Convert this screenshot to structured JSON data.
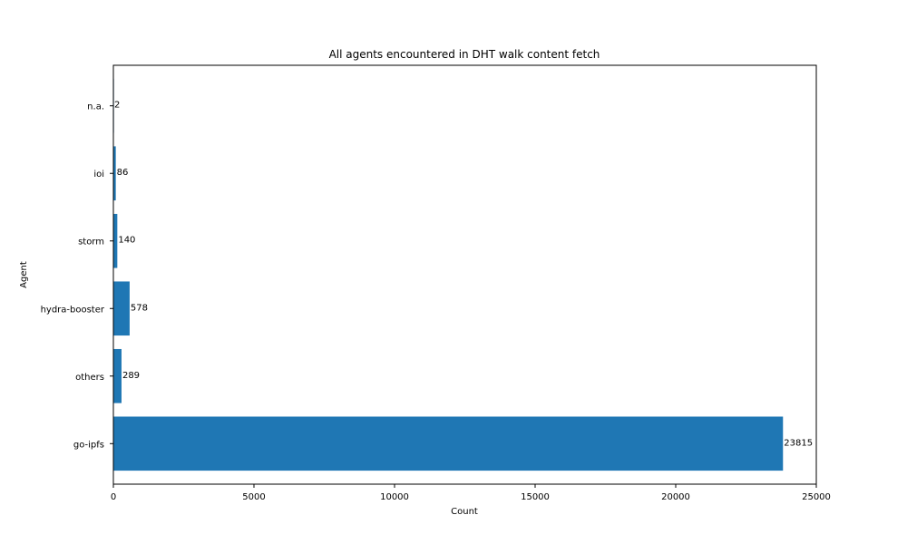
{
  "chart_data": {
    "type": "bar",
    "orientation": "horizontal",
    "title": "All agents encountered in DHT walk content fetch",
    "xlabel": "Count",
    "ylabel": "Agent",
    "categories": [
      "go-ipfs",
      "others",
      "hydra-booster",
      "storm",
      "ioi",
      "n.a."
    ],
    "values": [
      23815,
      289,
      578,
      140,
      86,
      2
    ],
    "data_labels": [
      "23815",
      "289",
      "578",
      "140",
      "86",
      "2"
    ],
    "xlim": [
      0,
      25000
    ],
    "xticks": [
      0,
      5000,
      10000,
      15000,
      20000,
      25000
    ],
    "xtick_labels": [
      "0",
      "5000",
      "10000",
      "15000",
      "20000",
      "25000"
    ],
    "bar_color": "#1f77b4",
    "grid": false,
    "legend": false
  }
}
